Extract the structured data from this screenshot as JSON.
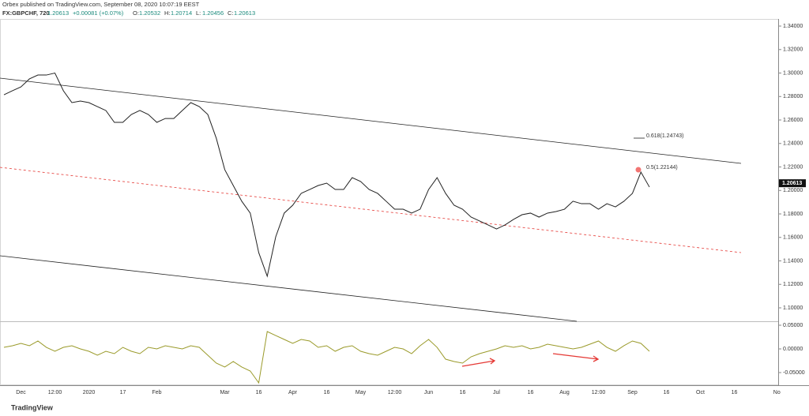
{
  "header": {
    "publisher": "Orbex published on TradingView.com, September 08, 2020 10:07:19 EEST",
    "symbol": "FX:GBPCHF, 720",
    "last": 1.20613,
    "change": "+0.00081 (+0.07%)",
    "ohlc": [
      {
        "label": "O:",
        "value": 1.20532
      },
      {
        "label": "H:",
        "value": 1.20714
      },
      {
        "label": "L:",
        "value": 1.20456
      },
      {
        "label": "C:",
        "value": 1.20613
      }
    ]
  },
  "footer": {
    "logo": "TradingView"
  },
  "chart_data": [
    {
      "type": "line",
      "categories": [
        null,
        null,
        "Dec",
        null,
        null,
        null,
        "12:00",
        null,
        null,
        null,
        "2020",
        null,
        null,
        null,
        "17",
        null,
        null,
        null,
        "Feb",
        null,
        null,
        null,
        null,
        null,
        null,
        null,
        "Mar",
        null,
        null,
        null,
        "16",
        null,
        null,
        null,
        "Apr",
        null,
        null,
        null,
        "16",
        null,
        null,
        null,
        "May",
        null,
        null,
        null,
        "12:00",
        null,
        null,
        null,
        "Jun",
        null,
        null,
        null,
        "16",
        null,
        null,
        null,
        "Jul",
        null,
        null,
        null,
        "16",
        null,
        null,
        null,
        "Aug",
        null,
        null,
        null,
        "12:00",
        null,
        null,
        null,
        "Sep",
        null,
        null,
        null,
        "16",
        null,
        null,
        null,
        "Oct",
        null,
        null,
        null,
        "16",
        null,
        null,
        null,
        null,
        "No"
      ],
      "series": [
        {
          "color": "#222222",
          "values": [
            1.2815,
            1.2849,
            1.2882,
            1.295,
            1.2983,
            1.2983,
            1.3,
            1.2849,
            1.2748,
            1.2761,
            1.2748,
            1.2714,
            1.2681,
            1.258,
            1.258,
            1.2647,
            1.2681,
            1.2647,
            1.258,
            1.2613,
            1.2613,
            1.2681,
            1.2748,
            1.2714,
            1.2647,
            1.2445,
            1.2177,
            1.2042,
            1.1908,
            1.1807,
            1.147,
            1.1269,
            1.1605,
            1.1807,
            1.1874,
            1.1975,
            1.2008,
            1.2042,
            1.2062,
            1.2008,
            1.2008,
            1.2109,
            1.2076,
            1.2008,
            1.1975,
            1.1908,
            1.184,
            1.184,
            1.1807,
            1.184,
            1.2008,
            1.2109,
            1.1975,
            1.1874,
            1.184,
            1.1773,
            1.174,
            1.1706,
            1.1672,
            1.1706,
            1.1753,
            1.1793,
            1.1807,
            1.1773,
            1.1807,
            1.182,
            1.184,
            1.1908,
            1.1887,
            1.1887,
            1.184,
            1.1887,
            1.186,
            1.1908,
            1.1975,
            1.2156,
            1.2029,
            null,
            null,
            null,
            null,
            null,
            null,
            null,
            null,
            null,
            null,
            null,
            null,
            null,
            null,
            null
          ]
        }
      ],
      "ylim": [
        1.0899,
        1.3454
      ],
      "yticks": [
        {
          "value": 1.1,
          "label": "1.10000"
        },
        {
          "value": 1.12,
          "label": "1.12000"
        },
        {
          "value": 1.14,
          "label": "1.14000"
        },
        {
          "value": 1.16,
          "label": "1.16000"
        },
        {
          "value": 1.18,
          "label": "1.18000"
        },
        {
          "value": 1.2,
          "label": "1.20000"
        },
        {
          "value": 1.22,
          "label": "1.22000"
        },
        {
          "value": 1.24,
          "label": "1.24000"
        },
        {
          "value": 1.26,
          "label": "1.26000"
        },
        {
          "value": 1.28,
          "label": "1.28000"
        },
        {
          "value": 1.3,
          "label": "1.30000"
        },
        {
          "value": 1.32,
          "label": "1.32000"
        },
        {
          "value": 1.34,
          "label": "1.34000"
        }
      ],
      "last_price": {
        "value": 1.20613,
        "label": "1.20613"
      },
      "annotations": [
        "0.618(1.24743)",
        "0.5(1.22144)"
      ]
    },
    {
      "type": "line",
      "series": [
        {
          "color": "#9a9a2a",
          "values": [
            0.0033,
            0.0067,
            0.0117,
            0.0067,
            0.0167,
            0.0033,
            -0.005,
            0.0033,
            0.0067,
            0,
            -0.005,
            -0.0133,
            -0.005,
            -0.01,
            0.0033,
            -0.005,
            -0.01,
            0.0033,
            0,
            0.0067,
            0.0033,
            0,
            0.0067,
            0.0033,
            -0.0133,
            -0.03,
            -0.0383,
            -0.0267,
            -0.0383,
            -0.0467,
            -0.0717,
            0.0367,
            0.0283,
            0.02,
            0.0117,
            0.02,
            0.0167,
            0.0033,
            0.0067,
            -0.005,
            0.0033,
            0.0067,
            -0.005,
            -0.01,
            -0.0133,
            -0.005,
            0.0033,
            0,
            -0.01,
            0.0067,
            0.02,
            0.0033,
            -0.0217,
            -0.0267,
            -0.03,
            -0.0167,
            -0.01,
            -0.005,
            0,
            0.0067,
            0.0033,
            0.0067,
            0,
            0.0033,
            0.01,
            0.0067,
            0.0033,
            0,
            0.0033,
            0.01,
            0.0167,
            0.0033,
            -0.005,
            0.0067,
            0.0167,
            0.0117,
            -0.005
          ]
        }
      ],
      "ylim": [
        -0.0767,
        0.0567
      ],
      "yticks": [
        {
          "value": -0.05,
          "label": "-0.05000"
        },
        {
          "value": 0,
          "label": "0.00000"
        },
        {
          "value": 0.05,
          "label": "0.05000"
        }
      ]
    }
  ]
}
